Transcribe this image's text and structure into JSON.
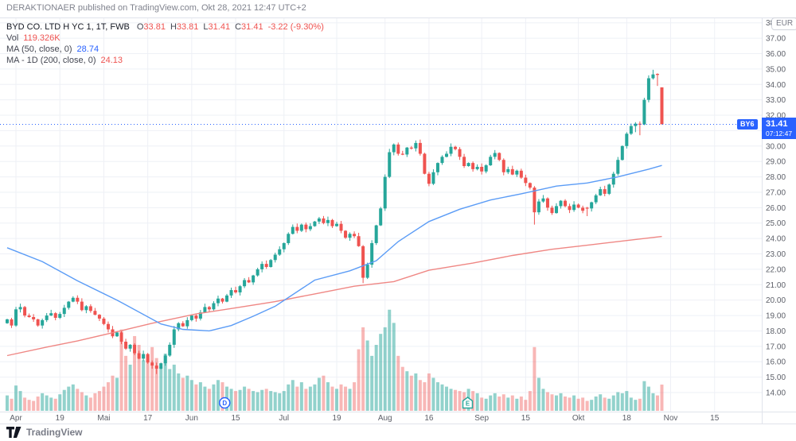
{
  "watermark": "DERAKTIONAER published on TradingView.com, Okt 28, 2021 12:47 UTC+2",
  "legend": {
    "symbol": "BYD CO. LTD H YC 1, 1T, FWB",
    "o_label": "O",
    "o": "33.81",
    "h_label": "H",
    "h": "33.81",
    "l_label": "L",
    "l": "31.41",
    "c_label": "C",
    "c": "31.41",
    "change": "-3.22 (-9.30%)",
    "vol_label": "Vol",
    "vol": "119.326K",
    "ma50_label": "MA (50, close, 0)",
    "ma50": "28.74",
    "ma200_label": "MA - 1D (200, close, 0)",
    "ma200": "24.13"
  },
  "price_tag": {
    "symbol": "BY6",
    "price": "31.41",
    "time": "07:12:47"
  },
  "price_axis": {
    "currency": "EUR",
    "min": 14,
    "max": 38,
    "step": 1
  },
  "footer": {
    "brand": "TradingView"
  },
  "colors": {
    "up": "#26a69a",
    "down": "#ef5350",
    "vol_up": "rgba(38,166,154,0.5)",
    "vol_down": "rgba(239,83,80,0.42)",
    "ma50": "#5b9cf6",
    "ma200": "#ef8784",
    "accent": "#2962ff",
    "grid": "#eef0f6",
    "border": "#e0e3eb",
    "axis_text": "#5d6069",
    "marker_e": "#26a69a"
  },
  "chart_data": {
    "type": "candlestick+volume",
    "title": "BYD CO. LTD H YC 1, 1T, FWB",
    "interval": "1T (daily)",
    "ylabel": "EUR",
    "ylim": [
      13.3,
      38.3
    ],
    "grid": true,
    "last_candle": {
      "open": 33.81,
      "high": 33.81,
      "low": 31.41,
      "close": 31.41,
      "change": -3.22,
      "change_pct": -9.3,
      "volume_k": 119.326
    },
    "dotted_price_line": 31.41,
    "time_labels": [
      [
        2,
        "Apr"
      ],
      [
        12,
        "19"
      ],
      [
        22,
        "Mai"
      ],
      [
        32,
        "17"
      ],
      [
        42,
        "Jun"
      ],
      [
        52,
        "15"
      ],
      [
        63,
        "Jul"
      ],
      [
        75,
        "19"
      ],
      [
        86,
        "Aug"
      ],
      [
        96,
        "16"
      ],
      [
        108,
        "Sep"
      ],
      [
        118,
        "15"
      ],
      [
        130,
        "Okt"
      ],
      [
        141,
        "18"
      ],
      [
        151,
        "Nov"
      ],
      [
        161,
        "15"
      ]
    ],
    "markers": [
      {
        "index": 49.5,
        "type": "dividend",
        "letter": "D"
      },
      {
        "index": 104.8,
        "type": "earnings",
        "letter": "E"
      }
    ],
    "first_open": 18.5,
    "closes": [
      18.75,
      18.35,
      19.4,
      19.55,
      19.0,
      18.9,
      18.75,
      18.35,
      18.7,
      19.0,
      19.15,
      18.85,
      19.1,
      19.5,
      19.9,
      20.15,
      19.9,
      19.35,
      19.6,
      19.3,
      19.05,
      18.8,
      18.45,
      18.1,
      17.65,
      17.9,
      17.3,
      16.85,
      17.1,
      16.55,
      16.2,
      16.5,
      15.95,
      15.75,
      15.55,
      15.9,
      16.4,
      17.1,
      18.1,
      18.5,
      18.3,
      18.7,
      19.0,
      18.8,
      19.2,
      19.55,
      19.4,
      19.8,
      20.1,
      19.9,
      20.3,
      20.65,
      20.5,
      20.9,
      21.3,
      21.15,
      21.6,
      22.0,
      22.35,
      22.15,
      22.6,
      22.95,
      23.3,
      23.7,
      24.3,
      24.75,
      24.5,
      24.9,
      24.6,
      24.8,
      25.1,
      25.3,
      25.0,
      25.2,
      24.8,
      24.95,
      24.5,
      24.05,
      24.3,
      24.15,
      23.5,
      21.45,
      22.3,
      23.7,
      24.85,
      25.95,
      28.0,
      29.6,
      30.1,
      29.5,
      29.45,
      29.9,
      29.85,
      30.2,
      29.5,
      28.2,
      27.55,
      28.3,
      28.9,
      29.3,
      29.5,
      29.95,
      29.8,
      29.3,
      28.7,
      28.9,
      28.5,
      28.65,
      28.35,
      28.75,
      29.3,
      29.55,
      29.1,
      28.3,
      28.5,
      28.15,
      28.4,
      27.95,
      27.6,
      27.3,
      25.7,
      26.4,
      26.6,
      26.0,
      25.65,
      26.1,
      26.45,
      26.1,
      25.85,
      26.2,
      26.0,
      25.8,
      25.95,
      26.35,
      26.8,
      27.2,
      26.9,
      27.5,
      28.2,
      29.1,
      30.0,
      30.8,
      31.3,
      31.45,
      31.4,
      33.0,
      34.4,
      34.65,
      34.63,
      31.41
    ],
    "volumes_k": [
      70,
      55,
      115,
      90,
      60,
      50,
      45,
      65,
      80,
      70,
      60,
      55,
      75,
      95,
      110,
      120,
      100,
      85,
      70,
      60,
      80,
      90,
      110,
      130,
      160,
      150,
      370,
      250,
      210,
      340,
      300,
      230,
      250,
      290,
      240,
      200,
      260,
      190,
      210,
      170,
      150,
      160,
      140,
      120,
      130,
      110,
      100,
      120,
      140,
      130,
      110,
      100,
      90,
      95,
      110,
      100,
      90,
      85,
      95,
      100,
      90,
      85,
      80,
      90,
      120,
      140,
      110,
      130,
      100,
      110,
      120,
      150,
      160,
      130,
      110,
      100,
      120,
      110,
      100,
      130,
      280,
      380,
      320,
      250,
      300,
      350,
      380,
      460,
      400,
      250,
      200,
      180,
      160,
      170,
      140,
      130,
      170,
      150,
      130,
      120,
      110,
      100,
      95,
      90,
      85,
      100,
      90,
      80,
      60,
      55,
      70,
      80,
      65,
      75,
      60,
      70,
      55,
      65,
      50,
      90,
      290,
      150,
      100,
      85,
      75,
      70,
      80,
      65,
      60,
      70,
      55,
      60,
      45,
      50,
      65,
      75,
      60,
      55,
      70,
      85,
      80,
      90,
      60,
      50,
      55,
      135,
      110,
      80,
      70,
      119.326
    ],
    "overrides": {
      "34": {
        "l": 15.2
      },
      "81": {
        "l": 21.1
      },
      "120": {
        "l": 24.9
      },
      "132": {
        "o": 26.0,
        "h": 26.05,
        "l": 25.45,
        "c": 25.95
      },
      "143": {
        "o": 31.3,
        "h": 31.55,
        "l": 30.9,
        "c": 31.45
      },
      "144": {
        "o": 31.45,
        "h": 31.6,
        "l": 30.7,
        "c": 31.4
      },
      "147": {
        "h": 34.95
      },
      "148": {
        "o": 34.68,
        "h": 34.72,
        "l": 33.9
      },
      "149": {
        "o": 33.81,
        "h": 33.81,
        "l": 31.41,
        "c": 31.41
      }
    },
    "ma50_points": [
      [
        0,
        23.4
      ],
      [
        8,
        22.5
      ],
      [
        16,
        21.25
      ],
      [
        25,
        20.0
      ],
      [
        35,
        18.45
      ],
      [
        40,
        18.1
      ],
      [
        46,
        18.0
      ],
      [
        51,
        18.35
      ],
      [
        56,
        18.95
      ],
      [
        61,
        19.6
      ],
      [
        70,
        21.3
      ],
      [
        78,
        21.9
      ],
      [
        84,
        22.55
      ],
      [
        89,
        23.8
      ],
      [
        96,
        25.1
      ],
      [
        103,
        25.9
      ],
      [
        110,
        26.5
      ],
      [
        117,
        26.9
      ],
      [
        125,
        27.4
      ],
      [
        132,
        27.6
      ],
      [
        139,
        28.0
      ],
      [
        146,
        28.5
      ],
      [
        149,
        28.74
      ]
    ],
    "ma200_points": [
      [
        0,
        16.4
      ],
      [
        9,
        16.95
      ],
      [
        16,
        17.35
      ],
      [
        25,
        17.95
      ],
      [
        33,
        18.5
      ],
      [
        43,
        19.1
      ],
      [
        52,
        19.5
      ],
      [
        61,
        19.9
      ],
      [
        70,
        20.4
      ],
      [
        79,
        20.9
      ],
      [
        88,
        21.2
      ],
      [
        96,
        21.94
      ],
      [
        106,
        22.4
      ],
      [
        115,
        22.9
      ],
      [
        124,
        23.3
      ],
      [
        133,
        23.6
      ],
      [
        142,
        23.9
      ],
      [
        149,
        24.13
      ]
    ]
  }
}
